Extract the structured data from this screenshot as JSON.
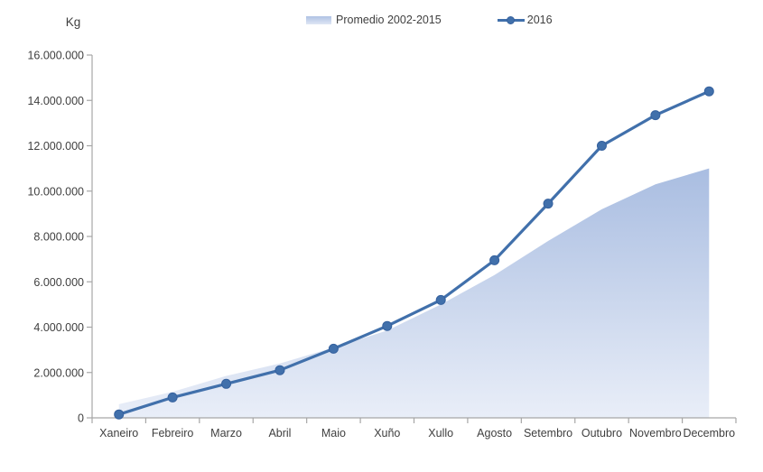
{
  "chart": {
    "unit_label": "Kg",
    "legend": [
      {
        "label": "Promedio 2002-2015",
        "swatch": "area-gradient-swatch"
      },
      {
        "label": "2016",
        "swatch": "line-marker-swatch"
      }
    ]
  },
  "chart_data": {
    "type": "combo",
    "title": "",
    "ylabel": "Kg",
    "xlabel": "",
    "grid": false,
    "legend_position": "top-center",
    "ylim": [
      0,
      16000000
    ],
    "ytick_step": 2000000,
    "ytick_labels": [
      "0",
      "2.000.000",
      "4.000.000",
      "6.000.000",
      "8.000.000",
      "10.000.000",
      "12.000.000",
      "14.000.000",
      "16.000.000"
    ],
    "categories": [
      "Xaneiro",
      "Febreiro",
      "Marzo",
      "Abril",
      "Maio",
      "Xuño",
      "Xullo",
      "Agosto",
      "Setembro",
      "Outubro",
      "Novembro",
      "Decembro"
    ],
    "series": [
      {
        "name": "Promedio 2002-2015",
        "type": "area",
        "values": [
          600000,
          1150000,
          1850000,
          2400000,
          3100000,
          3850000,
          5000000,
          6300000,
          7800000,
          9200000,
          10300000,
          11000000
        ]
      },
      {
        "name": "2016",
        "type": "line",
        "values": [
          150000,
          900000,
          1500000,
          2100000,
          3050000,
          4050000,
          5200000,
          6950000,
          9450000,
          12000000,
          13350000,
          14400000
        ]
      }
    ],
    "colors": {
      "line": "#4170ab",
      "marker": "#4170ab",
      "marker_edge": "#35619e",
      "area_top": "#a9bde1",
      "area_bottom": "#e9eef8",
      "axis": "#a6a6a6",
      "text": "#3f3f3f"
    }
  }
}
